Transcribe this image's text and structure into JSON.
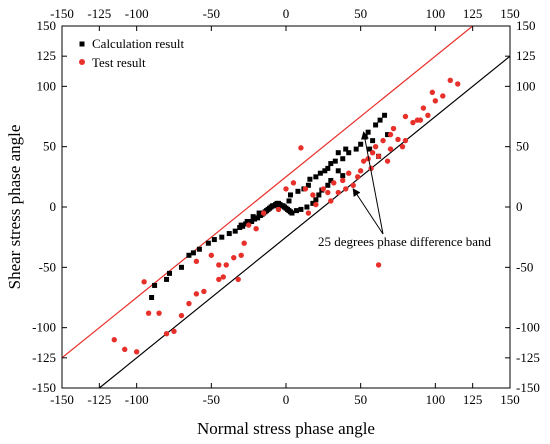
{
  "chart_data": {
    "type": "scatter",
    "title": "",
    "xlabel": "Normal stress phase angle",
    "ylabel": "Shear stress phase angle",
    "xlim": [
      -150,
      150
    ],
    "ylim": [
      -150,
      150
    ],
    "x_ticks": [
      -150,
      -125,
      -100,
      -50,
      0,
      50,
      100,
      125,
      150
    ],
    "y_ticks": [
      -150,
      -125,
      -100,
      -50,
      0,
      50,
      100,
      125,
      150
    ],
    "grid": false,
    "mirror_axes": true,
    "legend_position": "top-left",
    "series": [
      {
        "name": "Calculation result",
        "marker": "square",
        "color": "#000000",
        "points": [
          [
            -90,
            -75
          ],
          [
            -88,
            -65
          ],
          [
            -80,
            -60
          ],
          [
            -78,
            -55
          ],
          [
            -70,
            -50
          ],
          [
            -65,
            -40
          ],
          [
            -62,
            -38
          ],
          [
            -58,
            -35
          ],
          [
            -52,
            -30
          ],
          [
            -48,
            -27
          ],
          [
            -43,
            -25
          ],
          [
            -38,
            -22
          ],
          [
            -34,
            -20
          ],
          [
            -31,
            -17
          ],
          [
            -29,
            -16
          ],
          [
            -27,
            -14
          ],
          [
            -25,
            -13
          ],
          [
            -23,
            -12
          ],
          [
            -21,
            -10
          ],
          [
            -19,
            -9
          ],
          [
            -17,
            -7
          ],
          [
            -16,
            -6
          ],
          [
            -15,
            -5
          ],
          [
            -14,
            -4
          ],
          [
            -13,
            -3
          ],
          [
            -12,
            -2
          ],
          [
            -11,
            -1
          ],
          [
            -10,
            0
          ],
          [
            -9,
            1
          ],
          [
            -8,
            1
          ],
          [
            -7,
            2
          ],
          [
            -6,
            3
          ],
          [
            -5,
            3
          ],
          [
            -4,
            2
          ],
          [
            -3,
            1
          ],
          [
            -2,
            1
          ],
          [
            -1,
            0
          ],
          [
            0,
            -1
          ],
          [
            1,
            -2
          ],
          [
            2,
            -3
          ],
          [
            3,
            -4
          ],
          [
            4,
            -5
          ],
          [
            -18,
            -5
          ],
          [
            -22,
            -8
          ],
          [
            -26,
            -12
          ],
          [
            -30,
            -15
          ],
          [
            2,
            5
          ],
          [
            3,
            10
          ],
          [
            8,
            13
          ],
          [
            12,
            15
          ],
          [
            15,
            18
          ],
          [
            16,
            23
          ],
          [
            20,
            25
          ],
          [
            23,
            28
          ],
          [
            26,
            30
          ],
          [
            28,
            32
          ],
          [
            30,
            36
          ],
          [
            33,
            38
          ],
          [
            38,
            40
          ],
          [
            42,
            45
          ],
          [
            47,
            48
          ],
          [
            50,
            52
          ],
          [
            53,
            58
          ],
          [
            55,
            62
          ],
          [
            58,
            55
          ],
          [
            60,
            68
          ],
          [
            63,
            72
          ],
          [
            66,
            76
          ],
          [
            68,
            60
          ],
          [
            35,
            30
          ],
          [
            38,
            26
          ],
          [
            30,
            22
          ],
          [
            28,
            18
          ],
          [
            24,
            14
          ],
          [
            22,
            10
          ],
          [
            20,
            6
          ],
          [
            18,
            3
          ],
          [
            14,
            0
          ],
          [
            10,
            -2
          ],
          [
            7,
            -3
          ],
          [
            35,
            45
          ],
          [
            40,
            48
          ],
          [
            56,
            48
          ],
          [
            62,
            42
          ]
        ]
      },
      {
        "name": "Test result",
        "marker": "circle",
        "color": "#e8302b",
        "points": [
          [
            -95,
            -62
          ],
          [
            -92,
            -88
          ],
          [
            -85,
            -88
          ],
          [
            -80,
            -105
          ],
          [
            -75,
            -103
          ],
          [
            -70,
            -90
          ],
          [
            -65,
            -80
          ],
          [
            -60,
            -72
          ],
          [
            -55,
            -70
          ],
          [
            -45,
            -60
          ],
          [
            -40,
            -48
          ],
          [
            -35,
            -42
          ],
          [
            -28,
            -30
          ],
          [
            -42,
            -58
          ],
          [
            -30,
            -40
          ],
          [
            -32,
            -60
          ],
          [
            -115,
            -110
          ],
          [
            -108,
            -118
          ],
          [
            -100,
            -120
          ],
          [
            -45,
            -48
          ],
          [
            -15,
            -5
          ],
          [
            -5,
            -2
          ],
          [
            0,
            15
          ],
          [
            5,
            20
          ],
          [
            10,
            49
          ],
          [
            13,
            15
          ],
          [
            18,
            10
          ],
          [
            20,
            2
          ],
          [
            25,
            15
          ],
          [
            28,
            12
          ],
          [
            32,
            20
          ],
          [
            38,
            22
          ],
          [
            42,
            28
          ],
          [
            45,
            18
          ],
          [
            48,
            25
          ],
          [
            50,
            30
          ],
          [
            55,
            40
          ],
          [
            58,
            45
          ],
          [
            60,
            50
          ],
          [
            62,
            42
          ],
          [
            65,
            55
          ],
          [
            70,
            60
          ],
          [
            72,
            65
          ],
          [
            75,
            56
          ],
          [
            78,
            50
          ],
          [
            80,
            75
          ],
          [
            85,
            70
          ],
          [
            90,
            72
          ],
          [
            92,
            82
          ],
          [
            98,
            95
          ],
          [
            100,
            88
          ],
          [
            105,
            92
          ],
          [
            110,
            105
          ],
          [
            115,
            102
          ],
          [
            62,
            -48
          ],
          [
            -60,
            -45
          ],
          [
            -50,
            -40
          ],
          [
            -25,
            -15
          ],
          [
            -20,
            -18
          ],
          [
            15,
            -5
          ],
          [
            30,
            5
          ],
          [
            35,
            12
          ],
          [
            40,
            15
          ],
          [
            52,
            38
          ],
          [
            57,
            32
          ],
          [
            68,
            38
          ],
          [
            70,
            48
          ],
          [
            80,
            55
          ],
          [
            88,
            72
          ],
          [
            95,
            76
          ]
        ]
      }
    ],
    "lines": [
      {
        "name": "upper-bound",
        "color": "#e8302b",
        "from": [
          -150,
          -125
        ],
        "to": [
          125,
          150
        ]
      },
      {
        "name": "lower-bound",
        "color": "#000000",
        "from": [
          -125,
          -150
        ],
        "to": [
          150,
          125
        ]
      }
    ],
    "annotations": [
      {
        "text": "25 degrees phase difference band",
        "arrow_targets": [
          [
            52,
            62
          ],
          [
            45,
            15
          ]
        ]
      }
    ]
  }
}
